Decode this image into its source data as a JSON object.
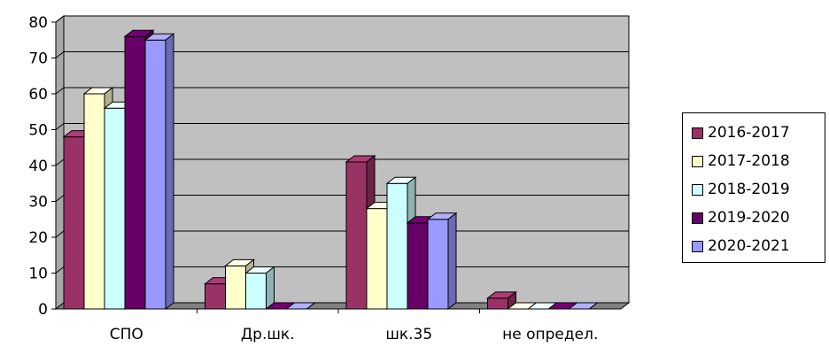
{
  "chart_data": {
    "type": "bar",
    "categories": [
      "СПО",
      "Др.шк.",
      "шк.35",
      "не определ."
    ],
    "series": [
      {
        "name": "2016-2017",
        "values": [
          48,
          7,
          41,
          3
        ],
        "color": "#993366"
      },
      {
        "name": "2017-2018",
        "values": [
          60,
          12,
          28,
          0
        ],
        "color": "#ffffcc"
      },
      {
        "name": "2018-2019",
        "values": [
          56,
          10,
          35,
          0
        ],
        "color": "#ccffff"
      },
      {
        "name": "2019-2020",
        "values": [
          76,
          0,
          24,
          0
        ],
        "color": "#660066"
      },
      {
        "name": "2020-2021",
        "values": [
          75,
          0,
          25,
          0
        ],
        "color": "#9999ff"
      }
    ],
    "ylim": [
      0,
      80
    ],
    "yticks": [
      "0",
      "10",
      "20",
      "30",
      "40",
      "50",
      "60",
      "70",
      "80"
    ],
    "title": "",
    "xlabel": "",
    "ylabel": "",
    "grid": true,
    "legend_position": "right",
    "wall_color": "#c0c0c0"
  }
}
